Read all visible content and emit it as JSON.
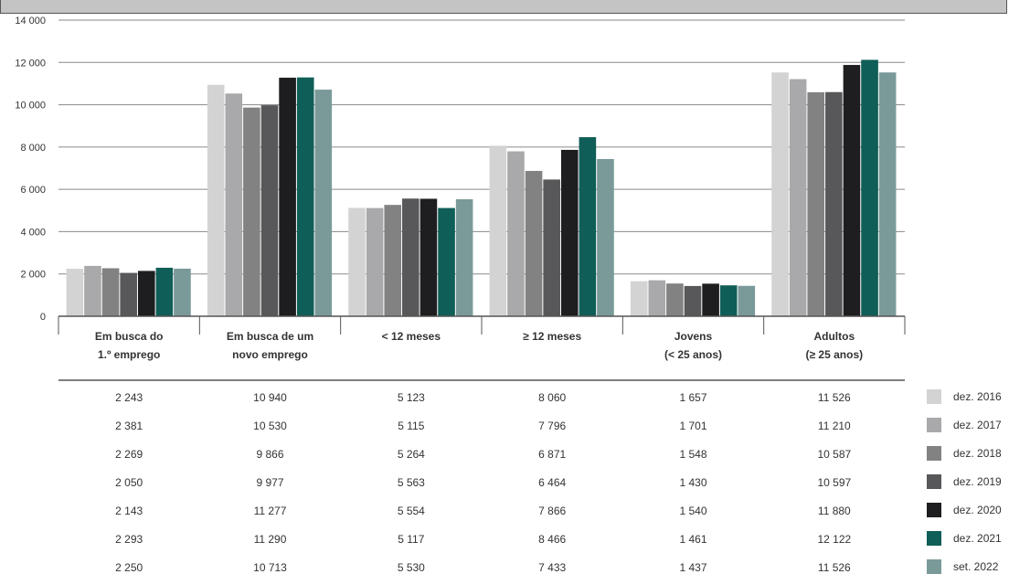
{
  "chart_data": {
    "type": "bar",
    "categories": [
      [
        "Em busca do",
        "1.º emprego"
      ],
      [
        "Em busca de um",
        "novo emprego"
      ],
      [
        "< 12 meses"
      ],
      [
        "≥ 12 meses"
      ],
      [
        "Jovens",
        "(< 25 anos)"
      ],
      [
        "Adultos",
        "(≥ 25 anos)"
      ]
    ],
    "ylim": [
      0,
      14000
    ],
    "yticks": [
      0,
      2000,
      4000,
      6000,
      8000,
      10000,
      12000,
      14000
    ],
    "ytick_labels": [
      "0",
      "2 000",
      "4 000",
      "6 000",
      "8 000",
      "10 000",
      "12 000",
      "14 000"
    ],
    "grid": true,
    "legend_position": "right",
    "series": [
      {
        "name": "dez. 2016",
        "color": "#d3d3d3",
        "values": [
          2243,
          10940,
          5123,
          8060,
          1657,
          11526
        ],
        "labels": [
          "2 243",
          "10 940",
          "5 123",
          "8 060",
          "1 657",
          "11 526"
        ]
      },
      {
        "name": "dez. 2017",
        "color": "#a9a9ab",
        "values": [
          2381,
          10530,
          5115,
          7796,
          1701,
          11210
        ],
        "labels": [
          "2 381",
          "10 530",
          "5 115",
          "7 796",
          "1 701",
          "11 210"
        ]
      },
      {
        "name": "dez. 2018",
        "color": "#828283",
        "values": [
          2269,
          9866,
          5264,
          6871,
          1548,
          10587
        ],
        "labels": [
          "2 269",
          "9 866",
          "5 264",
          "6 871",
          "1 548",
          "10 587"
        ]
      },
      {
        "name": "dez. 2019",
        "color": "#58585a",
        "values": [
          2050,
          9977,
          5563,
          6464,
          1430,
          10597
        ],
        "labels": [
          "2 050",
          "9 977",
          "5 563",
          "6 464",
          "1 430",
          "10 597"
        ]
      },
      {
        "name": "dez. 2020",
        "color": "#1e1d1f",
        "values": [
          2143,
          11277,
          5554,
          7866,
          1540,
          11880
        ],
        "labels": [
          "2 143",
          "11 277",
          "5 554",
          "7 866",
          "1 540",
          "11 880"
        ]
      },
      {
        "name": "dez. 2021",
        "color": "#0f5e57",
        "values": [
          2293,
          11290,
          5117,
          8466,
          1461,
          12122
        ],
        "labels": [
          "2 293",
          "11 290",
          "5 117",
          "8 466",
          "1 461",
          "12 122"
        ]
      },
      {
        "name": "set. 2022",
        "color": "#7a9a99",
        "values": [
          2250,
          10713,
          5530,
          7433,
          1437,
          11526
        ],
        "labels": [
          "2 250",
          "10 713",
          "5 530",
          "7 433",
          "1 437",
          "11 526"
        ]
      }
    ]
  }
}
